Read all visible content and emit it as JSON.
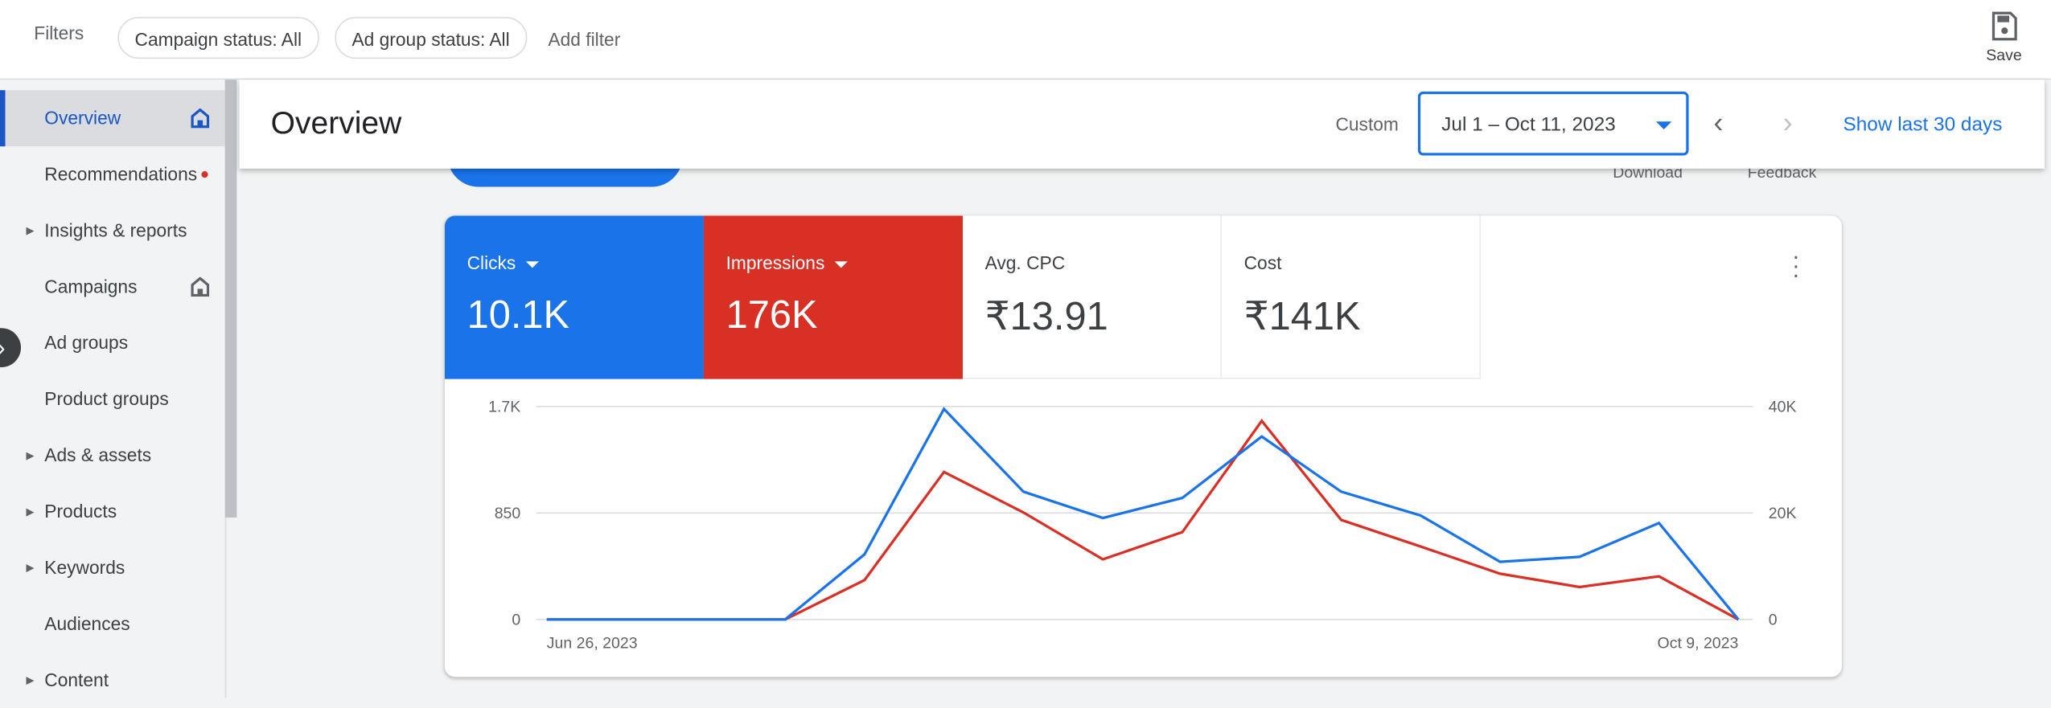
{
  "filters": {
    "label": "Filters",
    "chips": [
      "Campaign status: All",
      "Ad group status: All"
    ],
    "add_filter": "Add filter"
  },
  "save": {
    "label": "Save",
    "icon": "save-icon"
  },
  "sidebar": {
    "items": [
      {
        "label": "Overview",
        "active": true,
        "icon": "home-icon"
      },
      {
        "label": "Recommendations",
        "badge": "red-dot"
      },
      {
        "label": "Insights & reports",
        "expandable": true
      },
      {
        "label": "Campaigns",
        "icon": "home-icon"
      },
      {
        "label": "Ad groups"
      },
      {
        "label": "Product groups"
      },
      {
        "label": "Ads & assets",
        "expandable": true
      },
      {
        "label": "Products",
        "expandable": true
      },
      {
        "label": "Keywords",
        "expandable": true
      },
      {
        "label": "Audiences"
      },
      {
        "label": "Content",
        "expandable": true
      }
    ]
  },
  "header": {
    "title": "Overview",
    "range_type": "Custom",
    "date_range": "Jul 1 – Oct 11, 2023",
    "show_last_30": "Show last 30 days"
  },
  "actions": {
    "download": "Download",
    "feedback": "Feedback"
  },
  "metrics": [
    {
      "name": "Clicks",
      "value": "10.1K",
      "color": "#1a73e8",
      "selected": true
    },
    {
      "name": "Impressions",
      "value": "176K",
      "color": "#d93025",
      "selected": true
    },
    {
      "name": "Avg. CPC",
      "value": "₹13.91"
    },
    {
      "name": "Cost",
      "value": "₹141K"
    }
  ],
  "chart_data": {
    "type": "line",
    "x": [
      "2023-06-26",
      "2023-07-03",
      "2023-07-10",
      "2023-07-17",
      "2023-07-24",
      "2023-07-31",
      "2023-08-07",
      "2023-08-14",
      "2023-08-21",
      "2023-08-28",
      "2023-09-04",
      "2023-09-11",
      "2023-09-18",
      "2023-09-25",
      "2023-10-02",
      "2023-10-09"
    ],
    "x_tick_labels": [
      "Jun 26, 2023",
      "Oct 9, 2023"
    ],
    "left_axis": {
      "ticks": [
        "0",
        "850",
        "1.7K"
      ],
      "range": [
        0,
        1700
      ]
    },
    "right_axis": {
      "ticks": [
        "0",
        "20K",
        "40K"
      ],
      "range": [
        0,
        40000
      ]
    },
    "grid": true,
    "series": [
      {
        "name": "Clicks",
        "axis": "left",
        "color": "#1a73e8",
        "values": [
          0,
          0,
          0,
          0,
          520,
          1680,
          1020,
          810,
          970,
          1460,
          1020,
          830,
          460,
          500,
          770,
          0
        ]
      },
      {
        "name": "Impressions",
        "axis": "right",
        "color": "#d93025",
        "values": [
          0,
          0,
          0,
          0,
          7400,
          27700,
          20100,
          11300,
          16400,
          37300,
          18700,
          13700,
          8600,
          6100,
          8100,
          0
        ]
      }
    ]
  }
}
